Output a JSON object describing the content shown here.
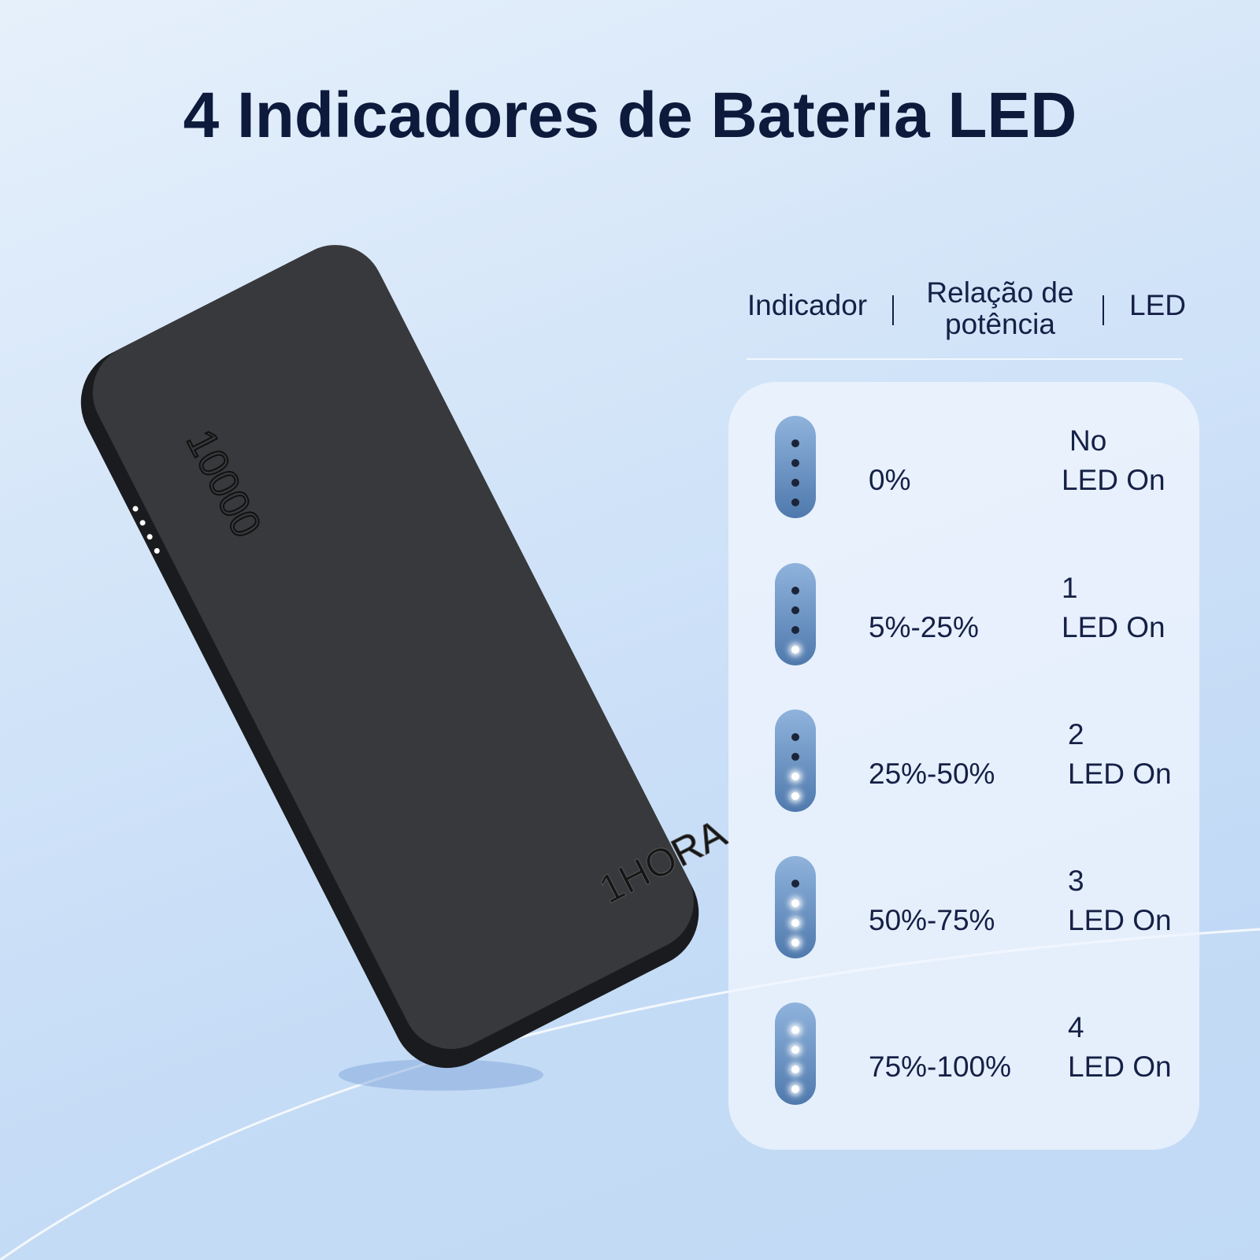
{
  "title": "4 Indicadores de Bateria LED",
  "product": {
    "capacity": "10000",
    "brand": "1HORA"
  },
  "table": {
    "header": [
      "Indicador",
      "Relação de potência",
      "LED"
    ],
    "rows": [
      {
        "ratio": "0%",
        "led": [
          "No",
          "LED On"
        ],
        "lit": 0
      },
      {
        "ratio": "5%-25%",
        "led": [
          "1",
          "LED On"
        ],
        "lit": 1
      },
      {
        "ratio": "25%-50%",
        "led": [
          "2",
          "LED On"
        ],
        "lit": 2
      },
      {
        "ratio": "50%-75%",
        "led": [
          "3",
          "LED On"
        ],
        "lit": 3
      },
      {
        "ratio": "75%-100%",
        "led": [
          "4",
          "LED On"
        ],
        "lit": 4
      }
    ]
  }
}
